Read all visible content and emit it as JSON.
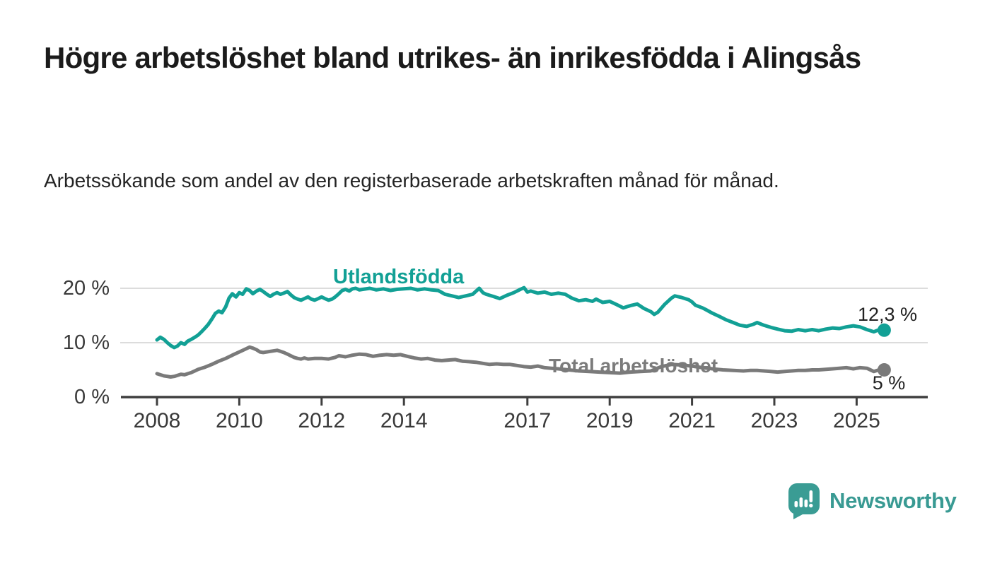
{
  "header": {
    "title": "Högre arbetslöshet bland utrikes- än inrikesfödda i Alingsås",
    "subtitle": "Arbetssökande som andel av den registerbaserade arbetskraften månad för månad."
  },
  "footer": {
    "brand": "Newsworthy"
  },
  "colors": {
    "foreign_born_line": "#12a095",
    "total_line": "#7a7a7a",
    "axis": "#3f3f3f",
    "gridline": "#dcdcdc",
    "brand_teal": "#3a9c94"
  },
  "chart_data": {
    "type": "line",
    "title": "Högre arbetslöshet bland utrikes- än inrikesfödda i Alingsås",
    "subtitle": "Arbetssökande som andel av den registerbaserade arbetskraften månad för månad.",
    "xlabel": "",
    "ylabel": "",
    "ylim": [
      0,
      21
    ],
    "xlim": [
      2007.1,
      2026.7
    ],
    "grid": "horizontal",
    "legend_position": "inline-labels",
    "y_ticks": [
      {
        "value": 20,
        "label": "20 %"
      },
      {
        "value": 10,
        "label": "10 %"
      },
      {
        "value": 0,
        "label": "0 %"
      }
    ],
    "x_ticks": [
      {
        "value": 2008,
        "label": "2008"
      },
      {
        "value": 2010,
        "label": "2010"
      },
      {
        "value": 2012,
        "label": "2012"
      },
      {
        "value": 2014,
        "label": "2014"
      },
      {
        "value": 2017,
        "label": "2017"
      },
      {
        "value": 2019,
        "label": "2019"
      },
      {
        "value": 2021,
        "label": "2021"
      },
      {
        "value": 2023,
        "label": "2023"
      },
      {
        "value": 2025,
        "label": "2025"
      }
    ],
    "series": [
      {
        "name": "Utlandsfödda",
        "color": "#12a095",
        "end_label": "12,3 %",
        "end_value": 12.3,
        "points": [
          [
            2008.0,
            10.5
          ],
          [
            2008.08,
            11.0
          ],
          [
            2008.17,
            10.6
          ],
          [
            2008.25,
            10.0
          ],
          [
            2008.33,
            9.5
          ],
          [
            2008.42,
            9.1
          ],
          [
            2008.5,
            9.4
          ],
          [
            2008.58,
            10.0
          ],
          [
            2008.67,
            9.7
          ],
          [
            2008.75,
            10.3
          ],
          [
            2008.83,
            10.6
          ],
          [
            2008.92,
            11.0
          ],
          [
            2009.0,
            11.4
          ],
          [
            2009.08,
            12.0
          ],
          [
            2009.17,
            12.7
          ],
          [
            2009.25,
            13.4
          ],
          [
            2009.33,
            14.3
          ],
          [
            2009.42,
            15.4
          ],
          [
            2009.5,
            15.8
          ],
          [
            2009.58,
            15.5
          ],
          [
            2009.67,
            16.6
          ],
          [
            2009.75,
            18.2
          ],
          [
            2009.83,
            19.0
          ],
          [
            2009.92,
            18.4
          ],
          [
            2010.0,
            19.2
          ],
          [
            2010.08,
            18.9
          ],
          [
            2010.17,
            19.9
          ],
          [
            2010.25,
            19.6
          ],
          [
            2010.33,
            19.0
          ],
          [
            2010.42,
            19.5
          ],
          [
            2010.5,
            19.8
          ],
          [
            2010.58,
            19.4
          ],
          [
            2010.67,
            18.9
          ],
          [
            2010.75,
            18.5
          ],
          [
            2010.83,
            18.9
          ],
          [
            2010.92,
            19.2
          ],
          [
            2011.0,
            18.9
          ],
          [
            2011.08,
            19.1
          ],
          [
            2011.17,
            19.4
          ],
          [
            2011.25,
            18.8
          ],
          [
            2011.33,
            18.3
          ],
          [
            2011.42,
            18.0
          ],
          [
            2011.5,
            17.8
          ],
          [
            2011.58,
            18.1
          ],
          [
            2011.67,
            18.4
          ],
          [
            2011.75,
            18.0
          ],
          [
            2011.83,
            17.8
          ],
          [
            2011.92,
            18.1
          ],
          [
            2012.0,
            18.4
          ],
          [
            2012.08,
            18.1
          ],
          [
            2012.17,
            17.8
          ],
          [
            2012.25,
            18.0
          ],
          [
            2012.33,
            18.4
          ],
          [
            2012.42,
            19.0
          ],
          [
            2012.5,
            19.6
          ],
          [
            2012.58,
            19.8
          ],
          [
            2012.67,
            19.5
          ],
          [
            2012.75,
            19.9
          ],
          [
            2012.83,
            20.0
          ],
          [
            2012.92,
            19.7
          ],
          [
            2013.0,
            19.8
          ],
          [
            2013.17,
            20.0
          ],
          [
            2013.33,
            19.7
          ],
          [
            2013.5,
            19.9
          ],
          [
            2013.67,
            19.6
          ],
          [
            2013.83,
            19.8
          ],
          [
            2014.0,
            19.9
          ],
          [
            2014.17,
            20.0
          ],
          [
            2014.33,
            19.7
          ],
          [
            2014.5,
            19.9
          ],
          [
            2014.67,
            19.7
          ],
          [
            2014.83,
            19.6
          ],
          [
            2015.0,
            18.9
          ],
          [
            2015.17,
            18.6
          ],
          [
            2015.33,
            18.3
          ],
          [
            2015.5,
            18.6
          ],
          [
            2015.67,
            18.9
          ],
          [
            2015.83,
            20.0
          ],
          [
            2015.92,
            19.2
          ],
          [
            2016.0,
            18.9
          ],
          [
            2016.17,
            18.5
          ],
          [
            2016.33,
            18.1
          ],
          [
            2016.5,
            18.7
          ],
          [
            2016.67,
            19.2
          ],
          [
            2016.83,
            19.8
          ],
          [
            2016.92,
            20.1
          ],
          [
            2017.0,
            19.3
          ],
          [
            2017.08,
            19.5
          ],
          [
            2017.25,
            19.1
          ],
          [
            2017.42,
            19.3
          ],
          [
            2017.58,
            18.9
          ],
          [
            2017.75,
            19.1
          ],
          [
            2017.92,
            18.9
          ],
          [
            2018.08,
            18.2
          ],
          [
            2018.25,
            17.7
          ],
          [
            2018.42,
            17.9
          ],
          [
            2018.58,
            17.6
          ],
          [
            2018.67,
            18.0
          ],
          [
            2018.83,
            17.4
          ],
          [
            2019.0,
            17.6
          ],
          [
            2019.17,
            17.0
          ],
          [
            2019.33,
            16.4
          ],
          [
            2019.5,
            16.8
          ],
          [
            2019.67,
            17.1
          ],
          [
            2019.83,
            16.3
          ],
          [
            2020.0,
            15.7
          ],
          [
            2020.08,
            15.2
          ],
          [
            2020.17,
            15.6
          ],
          [
            2020.33,
            17.0
          ],
          [
            2020.5,
            18.2
          ],
          [
            2020.58,
            18.6
          ],
          [
            2020.75,
            18.3
          ],
          [
            2020.92,
            17.9
          ],
          [
            2021.0,
            17.5
          ],
          [
            2021.08,
            16.9
          ],
          [
            2021.25,
            16.4
          ],
          [
            2021.33,
            16.1
          ],
          [
            2021.5,
            15.4
          ],
          [
            2021.67,
            14.8
          ],
          [
            2021.83,
            14.2
          ],
          [
            2022.0,
            13.7
          ],
          [
            2022.17,
            13.2
          ],
          [
            2022.33,
            13.0
          ],
          [
            2022.5,
            13.4
          ],
          [
            2022.58,
            13.7
          ],
          [
            2022.75,
            13.2
          ],
          [
            2022.92,
            12.8
          ],
          [
            2023.08,
            12.5
          ],
          [
            2023.25,
            12.2
          ],
          [
            2023.42,
            12.1
          ],
          [
            2023.58,
            12.4
          ],
          [
            2023.75,
            12.2
          ],
          [
            2023.92,
            12.4
          ],
          [
            2024.08,
            12.2
          ],
          [
            2024.25,
            12.5
          ],
          [
            2024.42,
            12.7
          ],
          [
            2024.58,
            12.6
          ],
          [
            2024.75,
            12.9
          ],
          [
            2024.92,
            13.1
          ],
          [
            2025.08,
            12.9
          ],
          [
            2025.25,
            12.4
          ],
          [
            2025.42,
            12.0
          ],
          [
            2025.58,
            12.5
          ],
          [
            2025.67,
            12.3
          ]
        ]
      },
      {
        "name": "Total arbetslöshet",
        "color": "#7a7a7a",
        "end_label": "5 %",
        "end_value": 5.0,
        "points": [
          [
            2008.0,
            4.3
          ],
          [
            2008.08,
            4.1
          ],
          [
            2008.17,
            3.9
          ],
          [
            2008.25,
            3.8
          ],
          [
            2008.33,
            3.7
          ],
          [
            2008.42,
            3.8
          ],
          [
            2008.5,
            4.0
          ],
          [
            2008.58,
            4.2
          ],
          [
            2008.67,
            4.1
          ],
          [
            2008.75,
            4.3
          ],
          [
            2008.83,
            4.5
          ],
          [
            2008.92,
            4.8
          ],
          [
            2009.0,
            5.1
          ],
          [
            2009.17,
            5.5
          ],
          [
            2009.33,
            6.0
          ],
          [
            2009.5,
            6.6
          ],
          [
            2009.67,
            7.1
          ],
          [
            2009.83,
            7.7
          ],
          [
            2010.0,
            8.3
          ],
          [
            2010.17,
            8.9
          ],
          [
            2010.25,
            9.2
          ],
          [
            2010.33,
            9.0
          ],
          [
            2010.42,
            8.7
          ],
          [
            2010.5,
            8.3
          ],
          [
            2010.58,
            8.2
          ],
          [
            2010.75,
            8.4
          ],
          [
            2010.92,
            8.6
          ],
          [
            2011.0,
            8.4
          ],
          [
            2011.08,
            8.2
          ],
          [
            2011.17,
            7.9
          ],
          [
            2011.25,
            7.6
          ],
          [
            2011.33,
            7.3
          ],
          [
            2011.42,
            7.1
          ],
          [
            2011.5,
            7.0
          ],
          [
            2011.58,
            7.2
          ],
          [
            2011.67,
            7.0
          ],
          [
            2011.83,
            7.1
          ],
          [
            2012.0,
            7.1
          ],
          [
            2012.17,
            7.0
          ],
          [
            2012.33,
            7.3
          ],
          [
            2012.42,
            7.6
          ],
          [
            2012.58,
            7.4
          ],
          [
            2012.75,
            7.7
          ],
          [
            2012.92,
            7.9
          ],
          [
            2013.08,
            7.8
          ],
          [
            2013.25,
            7.5
          ],
          [
            2013.42,
            7.7
          ],
          [
            2013.58,
            7.8
          ],
          [
            2013.75,
            7.7
          ],
          [
            2013.92,
            7.8
          ],
          [
            2014.08,
            7.5
          ],
          [
            2014.25,
            7.2
          ],
          [
            2014.42,
            7.0
          ],
          [
            2014.58,
            7.1
          ],
          [
            2014.75,
            6.8
          ],
          [
            2014.92,
            6.7
          ],
          [
            2015.08,
            6.8
          ],
          [
            2015.25,
            6.9
          ],
          [
            2015.42,
            6.6
          ],
          [
            2015.58,
            6.5
          ],
          [
            2015.75,
            6.4
          ],
          [
            2015.92,
            6.2
          ],
          [
            2016.08,
            6.0
          ],
          [
            2016.25,
            6.1
          ],
          [
            2016.42,
            6.0
          ],
          [
            2016.58,
            6.0
          ],
          [
            2016.75,
            5.8
          ],
          [
            2016.92,
            5.6
          ],
          [
            2017.08,
            5.5
          ],
          [
            2017.25,
            5.7
          ],
          [
            2017.42,
            5.4
          ],
          [
            2017.58,
            5.3
          ],
          [
            2017.75,
            5.2
          ],
          [
            2018.0,
            5.0
          ],
          [
            2018.25,
            4.8
          ],
          [
            2018.5,
            4.7
          ],
          [
            2018.75,
            4.6
          ],
          [
            2019.0,
            4.5
          ],
          [
            2019.25,
            4.4
          ],
          [
            2019.5,
            4.6
          ],
          [
            2019.75,
            4.7
          ],
          [
            2020.0,
            4.8
          ],
          [
            2020.25,
            5.6
          ],
          [
            2020.5,
            6.0
          ],
          [
            2020.75,
            5.9
          ],
          [
            2021.0,
            5.7
          ],
          [
            2021.25,
            5.4
          ],
          [
            2021.5,
            5.2
          ],
          [
            2021.75,
            5.0
          ],
          [
            2022.0,
            4.9
          ],
          [
            2022.25,
            4.8
          ],
          [
            2022.42,
            4.9
          ],
          [
            2022.58,
            4.9
          ],
          [
            2022.75,
            4.8
          ],
          [
            2022.92,
            4.7
          ],
          [
            2023.08,
            4.6
          ],
          [
            2023.25,
            4.7
          ],
          [
            2023.42,
            4.8
          ],
          [
            2023.58,
            4.9
          ],
          [
            2023.75,
            4.9
          ],
          [
            2023.92,
            5.0
          ],
          [
            2024.08,
            5.0
          ],
          [
            2024.25,
            5.1
          ],
          [
            2024.42,
            5.2
          ],
          [
            2024.58,
            5.3
          ],
          [
            2024.75,
            5.4
          ],
          [
            2024.92,
            5.2
          ],
          [
            2025.08,
            5.4
          ],
          [
            2025.25,
            5.3
          ],
          [
            2025.42,
            4.7
          ],
          [
            2025.58,
            5.1
          ],
          [
            2025.67,
            5.0
          ]
        ]
      }
    ]
  }
}
